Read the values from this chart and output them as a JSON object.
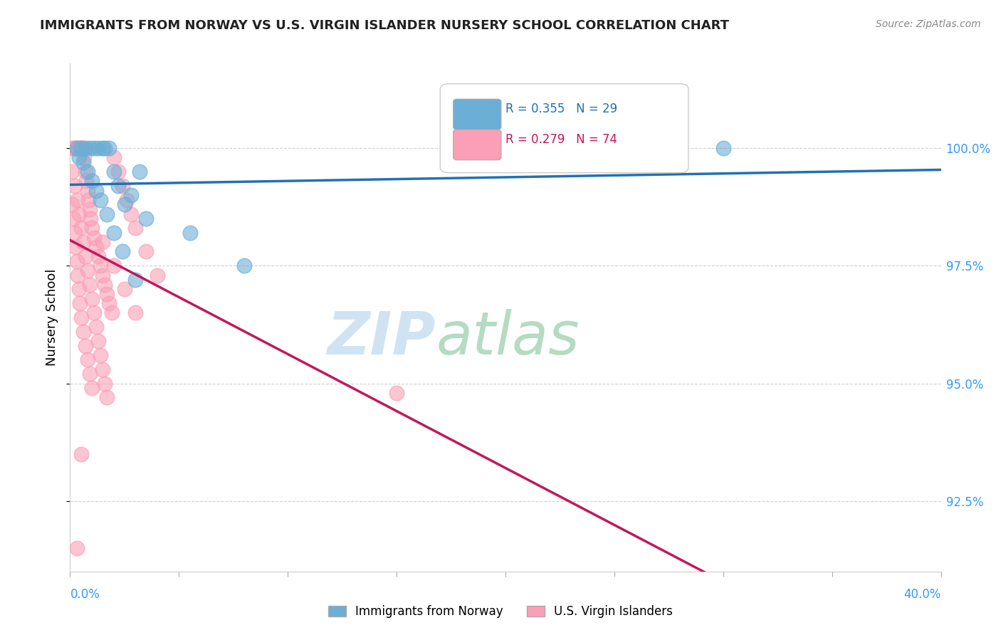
{
  "title": "IMMIGRANTS FROM NORWAY VS U.S. VIRGIN ISLANDER NURSERY SCHOOL CORRELATION CHART",
  "source": "Source: ZipAtlas.com",
  "ylabel": "Nursery School",
  "xmin": 0.0,
  "xmax": 40.0,
  "ymin": 91.0,
  "ymax": 101.8,
  "yticks": [
    92.5,
    95.0,
    97.5,
    100.0
  ],
  "ytick_labels": [
    "92.5%",
    "95.0%",
    "97.5%",
    "100.0%"
  ],
  "legend_blue_label": "Immigrants from Norway",
  "legend_pink_label": "U.S. Virgin Islanders",
  "R_blue": 0.355,
  "N_blue": 29,
  "R_pink": 0.279,
  "N_pink": 74,
  "blue_color": "#6baed6",
  "pink_color": "#fa9fb5",
  "blue_line_color": "#2171b5",
  "pink_line_color": "#c2185b",
  "blue_x": [
    0.3,
    0.5,
    0.7,
    0.9,
    1.1,
    1.3,
    1.5,
    1.6,
    1.8,
    2.0,
    2.2,
    2.5,
    2.8,
    3.2,
    3.5,
    5.5,
    8.0,
    0.4,
    0.6,
    0.8,
    1.0,
    1.2,
    1.4,
    1.7,
    2.0,
    2.4,
    3.0,
    20.0,
    30.0
  ],
  "blue_y": [
    100.0,
    100.0,
    100.0,
    100.0,
    100.0,
    100.0,
    100.0,
    100.0,
    100.0,
    99.5,
    99.2,
    98.8,
    99.0,
    99.5,
    98.5,
    98.2,
    97.5,
    99.8,
    99.7,
    99.5,
    99.3,
    99.1,
    98.9,
    98.6,
    98.2,
    97.8,
    97.2,
    100.0,
    100.0
  ],
  "pink_x": [
    0.1,
    0.15,
    0.2,
    0.25,
    0.3,
    0.35,
    0.4,
    0.45,
    0.5,
    0.55,
    0.6,
    0.65,
    0.7,
    0.75,
    0.8,
    0.85,
    0.9,
    0.95,
    1.0,
    1.1,
    1.2,
    1.3,
    1.4,
    1.5,
    1.6,
    1.7,
    1.8,
    1.9,
    2.0,
    2.2,
    2.4,
    2.6,
    2.8,
    3.0,
    3.5,
    4.0,
    0.1,
    0.2,
    0.3,
    0.4,
    0.5,
    0.6,
    0.7,
    0.8,
    0.9,
    1.0,
    1.1,
    1.2,
    1.3,
    1.4,
    1.5,
    1.6,
    1.7,
    0.1,
    0.15,
    0.2,
    0.25,
    0.3,
    0.35,
    0.4,
    0.45,
    0.5,
    0.6,
    0.7,
    0.8,
    0.9,
    1.0,
    1.5,
    2.0,
    2.5,
    3.0,
    15.0,
    0.5,
    0.3
  ],
  "pink_y": [
    100.0,
    100.0,
    100.0,
    100.0,
    100.0,
    100.0,
    100.0,
    100.0,
    100.0,
    100.0,
    100.0,
    99.8,
    99.5,
    99.3,
    99.1,
    98.9,
    98.7,
    98.5,
    98.3,
    98.1,
    97.9,
    97.7,
    97.5,
    97.3,
    97.1,
    96.9,
    96.7,
    96.5,
    99.8,
    99.5,
    99.2,
    98.9,
    98.6,
    98.3,
    97.8,
    97.3,
    99.5,
    99.2,
    98.9,
    98.6,
    98.3,
    98.0,
    97.7,
    97.4,
    97.1,
    96.8,
    96.5,
    96.2,
    95.9,
    95.6,
    95.3,
    95.0,
    94.7,
    98.8,
    98.5,
    98.2,
    97.9,
    97.6,
    97.3,
    97.0,
    96.7,
    96.4,
    96.1,
    95.8,
    95.5,
    95.2,
    94.9,
    98.0,
    97.5,
    97.0,
    96.5,
    94.8,
    93.5,
    91.5
  ]
}
